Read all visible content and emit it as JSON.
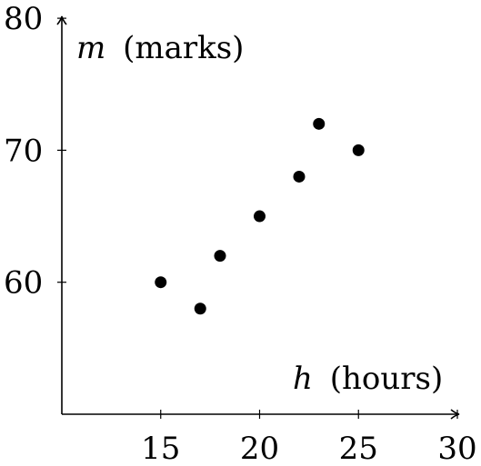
{
  "chart_data": {
    "type": "scatter",
    "xlabel_var": "h",
    "xlabel_unit": "(hours)",
    "ylabel_var": "m",
    "ylabel_unit": "(marks)",
    "xlim": [
      10,
      30
    ],
    "ylim": [
      50,
      80
    ],
    "xticks": [
      15,
      20,
      25,
      30
    ],
    "yticks": [
      60,
      70,
      80
    ],
    "grid": false,
    "points": [
      {
        "x": 15,
        "y": 60
      },
      {
        "x": 17,
        "y": 58
      },
      {
        "x": 18,
        "y": 62
      },
      {
        "x": 20,
        "y": 65
      },
      {
        "x": 22,
        "y": 68
      },
      {
        "x": 23,
        "y": 72
      },
      {
        "x": 25,
        "y": 70
      }
    ]
  }
}
